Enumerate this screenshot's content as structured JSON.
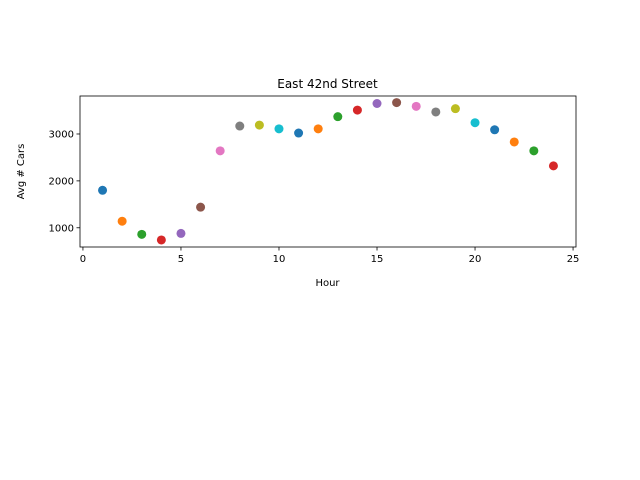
{
  "chart_data": {
    "type": "scatter",
    "title": "East 42nd Street",
    "xlabel": "Hour",
    "ylabel": "Avg # Cars",
    "xlim": [
      -0.15,
      25.15
    ],
    "ylim": [
      590,
      3810
    ],
    "xticks": [
      0,
      5,
      10,
      15,
      20,
      25
    ],
    "yticks": [
      1000,
      2000,
      3000
    ],
    "xtick_labels": [
      "0",
      "5",
      "10",
      "15",
      "20",
      "25"
    ],
    "ytick_labels": [
      "1000",
      "2000",
      "3000"
    ],
    "grid": false,
    "points": [
      {
        "x": 1,
        "y": 1800,
        "color": "#1f77b4"
      },
      {
        "x": 2,
        "y": 1140,
        "color": "#ff7f0e"
      },
      {
        "x": 3,
        "y": 860,
        "color": "#2ca02c"
      },
      {
        "x": 4,
        "y": 740,
        "color": "#d62728"
      },
      {
        "x": 5,
        "y": 880,
        "color": "#9467bd"
      },
      {
        "x": 6,
        "y": 1440,
        "color": "#8c564b"
      },
      {
        "x": 7,
        "y": 2640,
        "color": "#e377c2"
      },
      {
        "x": 8,
        "y": 3170,
        "color": "#7f7f7f"
      },
      {
        "x": 9,
        "y": 3190,
        "color": "#bcbd22"
      },
      {
        "x": 10,
        "y": 3110,
        "color": "#17becf"
      },
      {
        "x": 11,
        "y": 3020,
        "color": "#1f77b4"
      },
      {
        "x": 12,
        "y": 3110,
        "color": "#ff7f0e"
      },
      {
        "x": 13,
        "y": 3370,
        "color": "#2ca02c"
      },
      {
        "x": 14,
        "y": 3510,
        "color": "#d62728"
      },
      {
        "x": 15,
        "y": 3650,
        "color": "#9467bd"
      },
      {
        "x": 16,
        "y": 3670,
        "color": "#8c564b"
      },
      {
        "x": 17,
        "y": 3590,
        "color": "#e377c2"
      },
      {
        "x": 18,
        "y": 3470,
        "color": "#7f7f7f"
      },
      {
        "x": 19,
        "y": 3540,
        "color": "#bcbd22"
      },
      {
        "x": 20,
        "y": 3240,
        "color": "#17becf"
      },
      {
        "x": 21,
        "y": 3090,
        "color": "#1f77b4"
      },
      {
        "x": 22,
        "y": 2830,
        "color": "#ff7f0e"
      },
      {
        "x": 23,
        "y": 2640,
        "color": "#2ca02c"
      },
      {
        "x": 24,
        "y": 2320,
        "color": "#d62728"
      }
    ]
  }
}
